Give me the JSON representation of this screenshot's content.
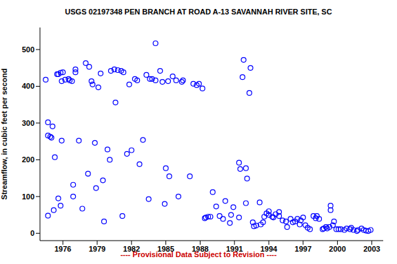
{
  "chart_data": {
    "type": "scatter",
    "title": "USGS 02197348 PEN BRANCH AT ROAD A-13 SAVANNAH RIVER SITE, SC",
    "y_label": "Streamflow, in cubic feet per second",
    "footnote": "---- Provisional Data Subject to Revision ----",
    "color": "#0000ff",
    "marker": "circle",
    "grid": false,
    "xlim": [
      1974.0,
      2004.0
    ],
    "ylim": [
      -20,
      560
    ],
    "xticks": [
      1976,
      1979,
      1982,
      1985,
      1988,
      1991,
      1994,
      1997,
      2000,
      2003
    ],
    "yticks": [
      0,
      100,
      200,
      300,
      400,
      500
    ],
    "x": [
      1974.5,
      1974.7,
      1974.7,
      1974.7,
      1974.9,
      1975.0,
      1975.1,
      1975.2,
      1975.3,
      1975.5,
      1975.6,
      1975.6,
      1975.8,
      1975.8,
      1975.9,
      1975.9,
      1976.0,
      1976.2,
      1976.5,
      1976.6,
      1976.8,
      1976.9,
      1976.9,
      1977.1,
      1977.1,
      1977.4,
      1977.7,
      1978.0,
      1978.2,
      1978.3,
      1978.5,
      1978.6,
      1978.8,
      1978.9,
      1979.1,
      1979.3,
      1979.5,
      1979.6,
      1979.9,
      1980.1,
      1980.2,
      1980.5,
      1980.6,
      1980.8,
      1981.1,
      1981.2,
      1981.3,
      1981.6,
      1981.8,
      1982.0,
      1982.3,
      1982.5,
      1982.7,
      1983.0,
      1983.3,
      1983.5,
      1983.6,
      1983.8,
      1984.1,
      1984.1,
      1984.5,
      1984.7,
      1984.9,
      1985.0,
      1985.2,
      1985.3,
      1985.6,
      1985.9,
      1986.1,
      1986.4,
      1986.5,
      1987.1,
      1987.4,
      1987.7,
      1987.9,
      1988.2,
      1988.4,
      1988.5,
      1988.7,
      1988.9,
      1989.1,
      1989.4,
      1989.7,
      1990.0,
      1990.2,
      1990.6,
      1990.7,
      1990.9,
      1991.4,
      1991.4,
      1991.5,
      1991.7,
      1991.8,
      1992.0,
      1992.0,
      1992.1,
      1992.3,
      1992.4,
      1992.6,
      1992.7,
      1992.9,
      1993.2,
      1993.3,
      1993.5,
      1993.6,
      1993.8,
      1994.0,
      1994.0,
      1994.3,
      1994.4,
      1994.6,
      1994.9,
      1994.9,
      1995.2,
      1995.5,
      1995.6,
      1995.9,
      1996.1,
      1996.3,
      1996.5,
      1996.7,
      1996.8,
      1997.0,
      1997.2,
      1997.4,
      1997.6,
      1997.9,
      1998.1,
      1998.2,
      1998.4,
      1998.7,
      1998.8,
      1999.0,
      1999.1,
      1999.3,
      1999.4,
      1999.4,
      1999.6,
      1999.7,
      1999.9,
      2000.1,
      2000.3,
      2000.6,
      2000.8,
      2001.1,
      2001.2,
      2001.4,
      2001.7,
      2001.8,
      2002.1,
      2002.3,
      2002.5,
      2002.7,
      2002.9
    ],
    "values": [
      418,
      302,
      266,
      48,
      263,
      260,
      291,
      63,
      207,
      433,
      433,
      95,
      437,
      75,
      414,
      252,
      438,
      418,
      420,
      416,
      414,
      132,
      100,
      446,
      438,
      252,
      67,
      463,
      162,
      453,
      414,
      405,
      246,
      123,
      397,
      435,
      144,
      32,
      228,
      200,
      442,
      446,
      356,
      444,
      442,
      47,
      438,
      216,
      405,
      226,
      420,
      416,
      188,
      254,
      431,
      93,
      420,
      420,
      416,
      517,
      442,
      412,
      80,
      177,
      414,
      155,
      427,
      416,
      100,
      412,
      416,
      155,
      407,
      403,
      407,
      394,
      41,
      43,
      45,
      45,
      112,
      73,
      47,
      39,
      88,
      28,
      50,
      71,
      43,
      192,
      175,
      425,
      472,
      177,
      82,
      149,
      382,
      450,
      30,
      19,
      21,
      84,
      24,
      30,
      45,
      54,
      60,
      50,
      45,
      43,
      52,
      58,
      47,
      35,
      32,
      17,
      39,
      30,
      32,
      39,
      24,
      35,
      43,
      22,
      15,
      11,
      47,
      41,
      47,
      39,
      11,
      13,
      17,
      13,
      17,
      75,
      63,
      22,
      32,
      11,
      11,
      11,
      9,
      13,
      11,
      15,
      9,
      6,
      9,
      13,
      9,
      7,
      6,
      9
    ]
  }
}
